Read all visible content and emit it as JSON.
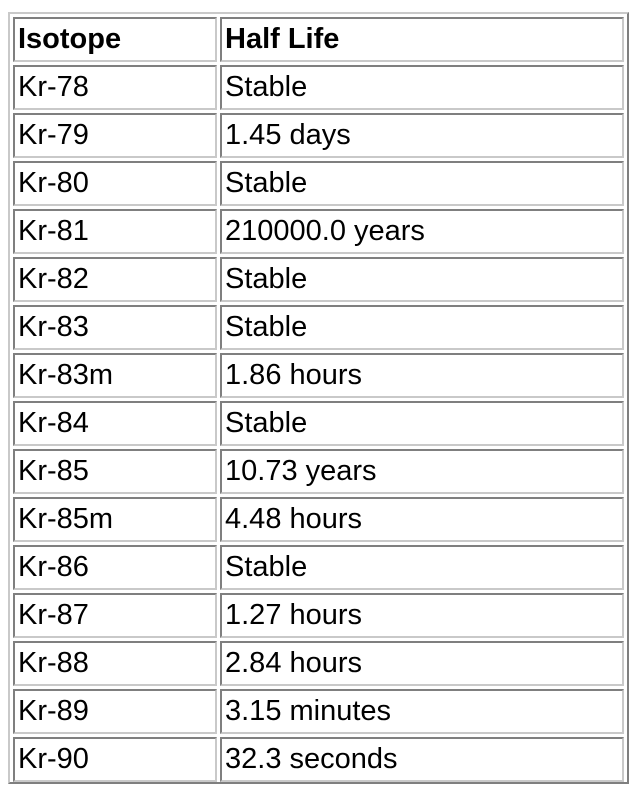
{
  "table": {
    "headers": [
      "Isotope",
      "Half Life"
    ],
    "rows": [
      [
        "Kr-78",
        "Stable"
      ],
      [
        "Kr-79",
        "1.45 days"
      ],
      [
        "Kr-80",
        "Stable"
      ],
      [
        "Kr-81",
        "210000.0 years"
      ],
      [
        "Kr-82",
        "Stable"
      ],
      [
        "Kr-83",
        "Stable"
      ],
      [
        "Kr-83m",
        "1.86 hours"
      ],
      [
        "Kr-84",
        "Stable"
      ],
      [
        "Kr-85",
        "10.73 years"
      ],
      [
        "Kr-85m",
        "4.48 hours"
      ],
      [
        "Kr-86",
        "Stable"
      ],
      [
        "Kr-87",
        "1.27 hours"
      ],
      [
        "Kr-88",
        "2.84 hours"
      ],
      [
        "Kr-89",
        "3.15 minutes"
      ],
      [
        "Kr-90",
        "32.3 seconds"
      ]
    ]
  }
}
